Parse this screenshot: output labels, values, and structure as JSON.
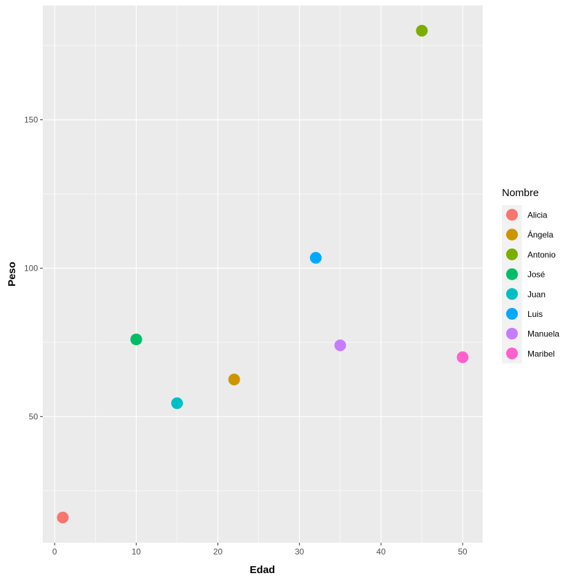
{
  "chart_data": {
    "type": "scatter",
    "title": "",
    "xlabel": "Edad",
    "ylabel": "Peso",
    "xlim": [
      -1.45,
      52.45
    ],
    "ylim": [
      7.5,
      188.5
    ],
    "xticks": [
      0,
      10,
      20,
      30,
      40,
      50
    ],
    "xminor": [
      5,
      15,
      25,
      35,
      45
    ],
    "yticks": [
      50,
      100,
      150
    ],
    "yminor": [
      25,
      75,
      125,
      175
    ],
    "grid": true,
    "legend": {
      "title": "Nombre",
      "position": "right"
    },
    "points": [
      {
        "name": "Alicia",
        "x": 1,
        "y": 16,
        "color": "#F8766D"
      },
      {
        "name": "Ángela",
        "x": 22,
        "y": 62.5,
        "color": "#CD9600"
      },
      {
        "name": "Antonio",
        "x": 45,
        "y": 180,
        "color": "#7CAE00"
      },
      {
        "name": "José",
        "x": 10,
        "y": 76,
        "color": "#00BE67"
      },
      {
        "name": "Juan",
        "x": 15,
        "y": 54.5,
        "color": "#00BFC4"
      },
      {
        "name": "Luis",
        "x": 32,
        "y": 103.5,
        "color": "#00A9FF"
      },
      {
        "name": "Manuela",
        "x": 35,
        "y": 74,
        "color": "#C77CFF"
      },
      {
        "name": "Maribel",
        "x": 50,
        "y": 70,
        "color": "#FF61CC"
      }
    ]
  }
}
